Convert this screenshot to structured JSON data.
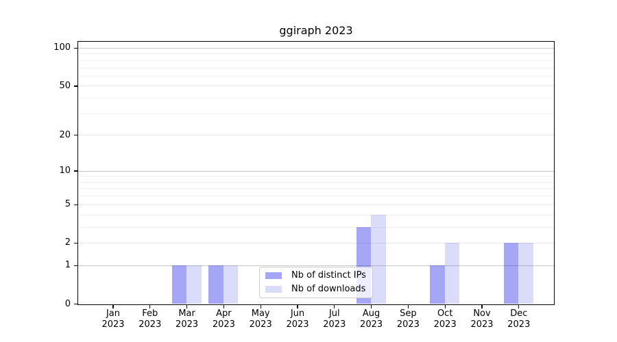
{
  "chart_data": {
    "type": "bar",
    "title": "ggiraph 2023",
    "x": {
      "months": [
        "Jan",
        "Feb",
        "Mar",
        "Apr",
        "May",
        "Jun",
        "Jul",
        "Aug",
        "Sep",
        "Oct",
        "Nov",
        "Dec"
      ],
      "year": "2023"
    },
    "series": [
      {
        "name": "Nb of distinct IPs",
        "color": "rgba(0,0,230,0.35)",
        "display_color": "#aaaaf8",
        "values": [
          0,
          0,
          1,
          1,
          0,
          0,
          0,
          3,
          0,
          1,
          0,
          2
        ]
      },
      {
        "name": "Nb of downloads",
        "color": "rgba(0,0,220,0.14)",
        "display_color": "#dcdcfa",
        "values": [
          0,
          0,
          1,
          1,
          0,
          0,
          0,
          4,
          0,
          2,
          0,
          2
        ]
      }
    ],
    "y_axis": {
      "scale": "log10(1+x)",
      "ticks": [
        0,
        1,
        2,
        5,
        10,
        20,
        50,
        100
      ],
      "major_gridlines": [
        1,
        10,
        100
      ],
      "mid_gridlines": [
        2,
        5,
        20,
        50
      ],
      "minor_gridlines": [
        3,
        4,
        6,
        7,
        8,
        9,
        30,
        40,
        60,
        70,
        80,
        90
      ],
      "range": [
        0,
        115
      ]
    },
    "legend": {
      "location": "lower center inside plot",
      "entries": [
        "Nb of distinct IPs",
        "Nb of downloads"
      ]
    }
  },
  "colors": {
    "major_grid": "#c8c8c8",
    "mid_grid": "#e7e7e7",
    "minor_grid": "#f1f1f1",
    "spine": "#000000",
    "legend_border": "#cccccc",
    "legend_bg": "rgba(255,255,255,0.8)",
    "text": "#000000"
  }
}
